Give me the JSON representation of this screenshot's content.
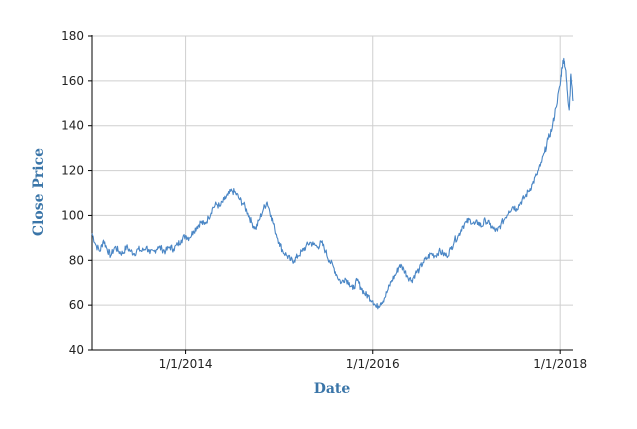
{
  "chart_data": {
    "type": "line",
    "xlabel": "Date",
    "ylabel": "Close Price",
    "x_range": [
      "2013-01-01",
      "2018-02-20"
    ],
    "ylim": [
      40,
      180
    ],
    "y_ticks": [
      40,
      60,
      80,
      100,
      120,
      140,
      160,
      180
    ],
    "x_ticks": [
      {
        "date": "2014-01-01",
        "label": "1/1/2014"
      },
      {
        "date": "2016-01-01",
        "label": "1/1/2016"
      },
      {
        "date": "2018-01-01",
        "label": "1/1/2018"
      }
    ],
    "grid": true,
    "legend": "none",
    "series": [
      {
        "color": "#4a86c5",
        "points": [
          [
            "2013-01-01",
            92
          ],
          [
            "2013-01-15",
            87
          ],
          [
            "2013-02-01",
            84
          ],
          [
            "2013-02-15",
            89
          ],
          [
            "2013-03-01",
            85
          ],
          [
            "2013-03-15",
            82
          ],
          [
            "2013-04-01",
            86
          ],
          [
            "2013-04-15",
            84
          ],
          [
            "2013-05-01",
            83
          ],
          [
            "2013-05-15",
            86
          ],
          [
            "2013-06-01",
            84
          ],
          [
            "2013-06-15",
            83
          ],
          [
            "2013-07-01",
            85
          ],
          [
            "2013-07-15",
            84
          ],
          [
            "2013-08-01",
            86
          ],
          [
            "2013-08-15",
            83
          ],
          [
            "2013-09-01",
            84
          ],
          [
            "2013-09-15",
            86
          ],
          [
            "2013-10-01",
            85
          ],
          [
            "2013-10-15",
            84
          ],
          [
            "2013-11-01",
            86
          ],
          [
            "2013-11-15",
            85
          ],
          [
            "2013-12-01",
            87
          ],
          [
            "2013-12-15",
            89
          ],
          [
            "2014-01-01",
            91
          ],
          [
            "2014-01-15",
            90
          ],
          [
            "2014-02-01",
            93
          ],
          [
            "2014-02-15",
            95
          ],
          [
            "2014-03-01",
            97
          ],
          [
            "2014-03-15",
            96
          ],
          [
            "2014-04-01",
            99
          ],
          [
            "2014-04-15",
            103
          ],
          [
            "2014-05-01",
            105
          ],
          [
            "2014-05-15",
            104
          ],
          [
            "2014-06-01",
            107
          ],
          [
            "2014-06-15",
            109
          ],
          [
            "2014-07-01",
            111
          ],
          [
            "2014-07-15",
            110
          ],
          [
            "2014-08-01",
            107
          ],
          [
            "2014-08-15",
            105
          ],
          [
            "2014-09-01",
            101
          ],
          [
            "2014-09-15",
            97
          ],
          [
            "2014-10-01",
            94
          ],
          [
            "2014-10-15",
            98
          ],
          [
            "2014-11-01",
            103
          ],
          [
            "2014-11-15",
            106
          ],
          [
            "2014-12-01",
            100
          ],
          [
            "2014-12-15",
            94
          ],
          [
            "2015-01-01",
            88
          ],
          [
            "2015-01-15",
            84
          ],
          [
            "2015-02-01",
            82
          ],
          [
            "2015-02-15",
            80
          ],
          [
            "2015-03-01",
            80
          ],
          [
            "2015-03-15",
            82
          ],
          [
            "2015-04-01",
            84
          ],
          [
            "2015-04-15",
            86
          ],
          [
            "2015-05-01",
            88
          ],
          [
            "2015-05-15",
            87
          ],
          [
            "2015-06-01",
            86
          ],
          [
            "2015-06-15",
            88
          ],
          [
            "2015-07-01",
            84
          ],
          [
            "2015-07-15",
            80
          ],
          [
            "2015-08-01",
            77
          ],
          [
            "2015-08-15",
            73
          ],
          [
            "2015-09-01",
            70
          ],
          [
            "2015-09-15",
            72
          ],
          [
            "2015-10-01",
            70
          ],
          [
            "2015-10-15",
            67
          ],
          [
            "2015-11-01",
            71
          ],
          [
            "2015-11-15",
            68
          ],
          [
            "2015-12-01",
            65
          ],
          [
            "2015-12-15",
            64
          ],
          [
            "2016-01-01",
            62
          ],
          [
            "2016-01-15",
            59
          ],
          [
            "2016-02-01",
            61
          ],
          [
            "2016-02-15",
            63
          ],
          [
            "2016-03-01",
            67
          ],
          [
            "2016-03-15",
            71
          ],
          [
            "2016-04-01",
            74
          ],
          [
            "2016-04-15",
            78
          ],
          [
            "2016-05-01",
            76
          ],
          [
            "2016-05-15",
            73
          ],
          [
            "2016-06-01",
            71
          ],
          [
            "2016-06-15",
            74
          ],
          [
            "2016-07-01",
            76
          ],
          [
            "2016-07-15",
            79
          ],
          [
            "2016-08-01",
            81
          ],
          [
            "2016-08-15",
            83
          ],
          [
            "2016-09-01",
            82
          ],
          [
            "2016-09-15",
            84
          ],
          [
            "2016-10-01",
            83
          ],
          [
            "2016-10-15",
            82
          ],
          [
            "2016-11-01",
            85
          ],
          [
            "2016-11-15",
            89
          ],
          [
            "2016-12-01",
            91
          ],
          [
            "2016-12-15",
            95
          ],
          [
            "2017-01-01",
            97
          ],
          [
            "2017-01-15",
            98
          ],
          [
            "2017-02-01",
            96
          ],
          [
            "2017-02-15",
            97
          ],
          [
            "2017-03-01",
            95
          ],
          [
            "2017-03-15",
            98
          ],
          [
            "2017-04-01",
            96
          ],
          [
            "2017-04-15",
            94
          ],
          [
            "2017-05-01",
            93
          ],
          [
            "2017-05-15",
            96
          ],
          [
            "2017-06-01",
            99
          ],
          [
            "2017-06-15",
            102
          ],
          [
            "2017-07-01",
            104
          ],
          [
            "2017-07-15",
            103
          ],
          [
            "2017-08-01",
            106
          ],
          [
            "2017-08-15",
            108
          ],
          [
            "2017-09-01",
            111
          ],
          [
            "2017-09-15",
            114
          ],
          [
            "2017-10-01",
            118
          ],
          [
            "2017-10-15",
            122
          ],
          [
            "2017-11-01",
            128
          ],
          [
            "2017-11-15",
            134
          ],
          [
            "2017-12-01",
            139
          ],
          [
            "2017-12-15",
            148
          ],
          [
            "2018-01-01",
            158
          ],
          [
            "2018-01-08",
            166
          ],
          [
            "2018-01-15",
            170
          ],
          [
            "2018-01-22",
            165
          ],
          [
            "2018-01-29",
            155
          ],
          [
            "2018-02-05",
            147
          ],
          [
            "2018-02-12",
            163
          ],
          [
            "2018-02-20",
            151
          ]
        ]
      }
    ]
  }
}
